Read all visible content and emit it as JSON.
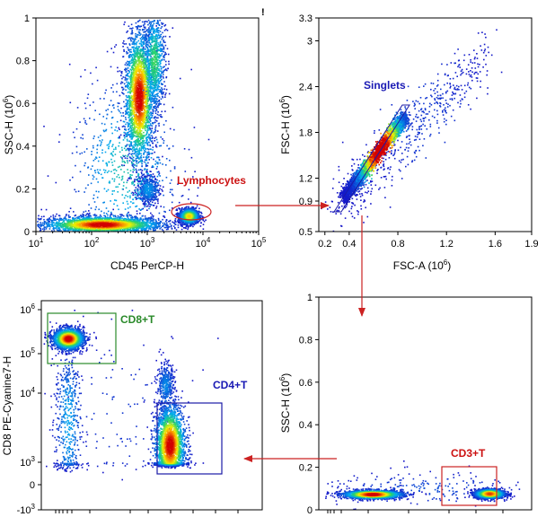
{
  "colors": {
    "gate_red": "#cc2222",
    "gate_green": "#2a8a2a",
    "gate_blue": "#1a1aa6",
    "label_blue": "#1a1ab4",
    "label_green": "#2a8a2a",
    "label_red": "#cc1111",
    "arrow": "#cc2222"
  },
  "chart_data": [
    {
      "type": "scatter",
      "id": "p1",
      "title": "",
      "xlabel": "CD45 PerCP-H",
      "ylabel": "SSC-H (10⁶)",
      "xscale": "log",
      "xlim": [
        10,
        100000
      ],
      "ylim": [
        0,
        1
      ],
      "xticks": [
        {
          "v": 10,
          "b": "10",
          "e": "1"
        },
        {
          "v": 100,
          "b": "10",
          "e": "2"
        },
        {
          "v": 1000,
          "b": "10",
          "e": "3"
        },
        {
          "v": 10000,
          "b": "10",
          "e": "4"
        },
        {
          "v": 100000,
          "b": "10",
          "e": "5"
        }
      ],
      "yticks": [
        "0",
        "0.2",
        "0.4",
        "0.6",
        "0.8",
        "1"
      ],
      "yticks_v": [
        0,
        0.2,
        0.4,
        0.6,
        0.8,
        1
      ],
      "clusters": [
        {
          "x": 150,
          "y": 0.035,
          "sx": 0.55,
          "sy": 0.02,
          "n": 2600,
          "log": true
        },
        {
          "x": 700,
          "y": 0.63,
          "sx": 0.13,
          "sy": 0.16,
          "n": 2400,
          "log": true
        },
        {
          "x": 1300,
          "y": 0.8,
          "sx": 0.1,
          "sy": 0.13,
          "n": 900,
          "log": true
        },
        {
          "x": 1000,
          "y": 0.2,
          "sx": 0.1,
          "sy": 0.035,
          "n": 450,
          "log": true
        },
        {
          "x": 5500,
          "y": 0.075,
          "sx": 0.09,
          "sy": 0.018,
          "n": 1300,
          "log": true
        },
        {
          "x": 400,
          "y": 0.3,
          "sx": 0.5,
          "sy": 0.22,
          "n": 700,
          "log": true
        }
      ],
      "gates": [
        {
          "shape": "ellipse",
          "label": "Lymphocytes",
          "color": "red",
          "cx": 2500,
          "cy": 0.09,
          "rx_log": 0.3,
          "ry": 0.045
        }
      ]
    },
    {
      "type": "scatter",
      "id": "p2",
      "title": "",
      "xlabel": "FSC-A (10⁶)",
      "ylabel": "FSC-H (10⁶)",
      "xscale": "linear",
      "xlim": [
        0.15,
        1.9
      ],
      "ylim": [
        0.5,
        3.3
      ],
      "xticks": [
        {
          "v": 0.2,
          "t": "0.2"
        },
        {
          "v": 0.4,
          "t": "0.4"
        },
        {
          "v": 0.8,
          "t": "0.8"
        },
        {
          "v": 1.2,
          "t": "1.2"
        },
        {
          "v": 1.6,
          "t": "1.6"
        },
        {
          "v": 1.9,
          "t": "1.9"
        }
      ],
      "yticks": [
        "0.5",
        "0.9",
        "1.2",
        "1.8",
        "2.4",
        "3",
        "3.3"
      ],
      "yticks_v": [
        0.5,
        0.9,
        1.2,
        1.8,
        2.4,
        3.0,
        3.3
      ],
      "clusters": [
        {
          "diag": true,
          "x0": 0.35,
          "y0": 0.95,
          "x1": 0.85,
          "y1": 2.0,
          "spread": 0.03,
          "n": 3200
        },
        {
          "diag": true,
          "x0": 0.3,
          "y0": 0.8,
          "x1": 1.5,
          "y1": 2.8,
          "spread": 0.12,
          "n": 600
        }
      ],
      "gates": [
        {
          "shape": "poly",
          "label": "Singlets",
          "color": "blue",
          "points": [
            [
              0.3,
              0.9
            ],
            [
              0.85,
              2.05
            ],
            [
              0.9,
              2.05
            ],
            [
              0.45,
              0.9
            ]
          ]
        }
      ]
    },
    {
      "type": "scatter",
      "id": "p3",
      "title": "",
      "xlabel": "",
      "ylabel": "CD8 PE-Cyanine7-H",
      "xscale": "log",
      "xlim": [
        0,
        1
      ],
      "ylim": [
        -3,
        6
      ],
      "yscale": "biex",
      "yticks_biex": [
        {
          "v": 6,
          "b": "10",
          "e": "6"
        },
        {
          "v": 5,
          "b": "10",
          "e": "5"
        },
        {
          "v": 4,
          "b": "10",
          "e": "4"
        },
        {
          "v": 3,
          "b": "10",
          "e": "3"
        },
        {
          "v": 0,
          "b": "0",
          "e": ""
        },
        {
          "v": -3,
          "b": "-10",
          "e": "3"
        }
      ],
      "clusters": [
        {
          "x": 0.12,
          "y": 5.35,
          "sx": 0.035,
          "sy": 0.12,
          "n": 2000
        },
        {
          "x": 0.12,
          "y": 3.6,
          "sx": 0.03,
          "sy": 0.7,
          "n": 500
        },
        {
          "x": 0.58,
          "y": 3.25,
          "sx": 0.035,
          "sy": 0.3,
          "n": 2200
        },
        {
          "x": 0.56,
          "y": 4.2,
          "sx": 0.02,
          "sy": 0.3,
          "n": 400
        },
        {
          "x": 0.35,
          "y": 3.8,
          "sx": 0.18,
          "sy": 0.9,
          "n": 120
        }
      ],
      "gates": [
        {
          "shape": "rect",
          "label": "CD8+T",
          "color": "green",
          "x0": 0.015,
          "x1": 0.27,
          "y0": 4.5,
          "y1": 6.05
        },
        {
          "shape": "rect",
          "label": "CD4+T",
          "color": "blue",
          "x0": 0.47,
          "x1": 0.71,
          "y0": 2.6,
          "y1": 3.95
        }
      ]
    },
    {
      "type": "scatter",
      "id": "p4",
      "title": "",
      "xlabel": "",
      "ylabel": "SSC-H (10⁶)",
      "xscale": "log",
      "xlim": [
        0,
        1
      ],
      "ylim": [
        0,
        1
      ],
      "yticks": [
        "0",
        "0.2",
        "0.4",
        "0.6",
        "0.8",
        "1"
      ],
      "yticks_v": [
        0,
        0.2,
        0.4,
        0.6,
        0.8,
        1
      ],
      "clusters": [
        {
          "x": 0.25,
          "y": 0.075,
          "sx": 0.07,
          "sy": 0.01,
          "n": 1800
        },
        {
          "x": 0.8,
          "y": 0.078,
          "sx": 0.035,
          "sy": 0.011,
          "n": 1600
        },
        {
          "x": 0.5,
          "y": 0.1,
          "sx": 0.25,
          "sy": 0.04,
          "n": 200
        }
      ],
      "gates": [
        {
          "shape": "rect",
          "label": "CD3+T",
          "color": "red",
          "x0": 0.69,
          "x1": 0.91,
          "y0": 0.015,
          "y1": 0.2
        }
      ]
    }
  ],
  "gate_labels": {
    "lymphocytes": "Lymphocytes",
    "singlets": "Singlets",
    "cd8": "CD8+T",
    "cd4": "CD4+T",
    "cd3": "CD3+T"
  },
  "axis_labels": {
    "p1_x": "CD45 PerCP-H",
    "p1_y_main": "SSC-H",
    "p2_x_main": "FSC-A",
    "p2_y_main": "FSC-H",
    "p3_y": "CD8 PE-Cyanine7-H",
    "p4_y_main": "SSC-H",
    "unit_base": "(10",
    "unit_exp": "6",
    "unit_close": ")"
  },
  "stray_mark": "!"
}
